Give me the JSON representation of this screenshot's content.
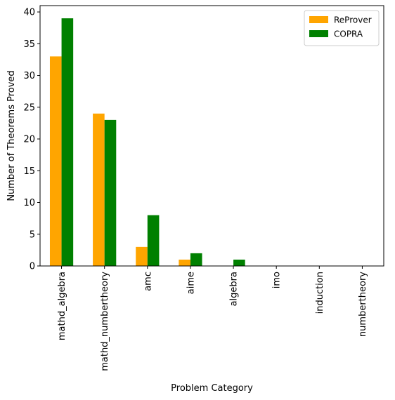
{
  "chart_data": {
    "type": "bar",
    "categories": [
      "mathd_algebra",
      "mathd_numbertheory",
      "amc",
      "aime",
      "algebra",
      "imo",
      "induction",
      "numbertheory"
    ],
    "series": [
      {
        "name": "ReProver",
        "values": [
          33,
          24,
          3,
          1,
          0,
          0,
          0,
          0
        ],
        "color": "#ffa500"
      },
      {
        "name": "COPRA",
        "values": [
          39,
          23,
          8,
          2,
          1,
          0,
          0,
          0
        ],
        "color": "#008000"
      }
    ],
    "xlabel": "Problem Category",
    "ylabel": "Number of Theorems Proved",
    "ylim": [
      0,
      41
    ],
    "yticks": [
      0,
      5,
      10,
      15,
      20,
      25,
      30,
      35,
      40
    ],
    "grid": false,
    "legend_position": "top-right"
  }
}
